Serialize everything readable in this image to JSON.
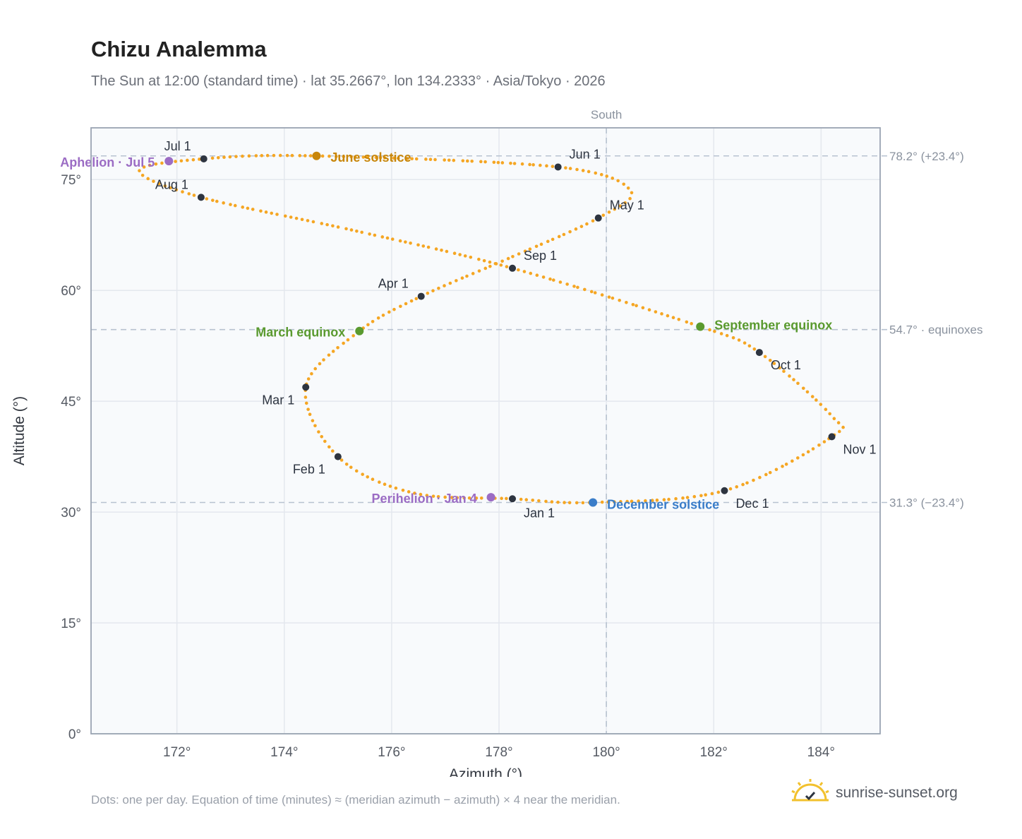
{
  "title": "Chizu Analemma",
  "subtitle": "The Sun at 12:00 (standard time) · lat 35.2667°, lon 134.2333° · Asia/Tokyo · 2026",
  "footnote": "Dots: one per day. Equation of time (minutes) ≈ (meridian azimuth − azimuth) × 4 near the meridian.",
  "brand": {
    "text": "sunrise-sunset.org",
    "icon": "sun-logo-icon"
  },
  "colors": {
    "curve": "#f5a623",
    "month_marker": "#2d3440",
    "june_solstice": "#c8860a",
    "equinox": "#5a9a2f",
    "december_solstice": "#3a7dc9",
    "apsis": "#9b6cc4",
    "plot_bg": "#f8fafc",
    "grid": "#e4e8ee",
    "axis": "#9aa4b2"
  },
  "chart_data": {
    "type": "scatter",
    "title": "Chizu Analemma",
    "xlabel": "Azimuth (°)",
    "ylabel": "Altitude (°)",
    "xlim": [
      170.4,
      185.1
    ],
    "ylim": [
      0,
      82
    ],
    "x_ticks": [
      172,
      174,
      176,
      178,
      180,
      182,
      184
    ],
    "x_tick_labels": [
      "172°",
      "174°",
      "176°",
      "178°",
      "180°",
      "182°",
      "184°"
    ],
    "y_ticks": [
      0,
      15,
      30,
      45,
      60,
      75
    ],
    "y_tick_labels": [
      "0°",
      "15°",
      "30°",
      "45°",
      "60°",
      "75°"
    ],
    "grid": true,
    "meridian": {
      "x": 180,
      "label": "South"
    },
    "reference_lines": [
      {
        "y": 78.2,
        "label": "78.2° (+23.4°)"
      },
      {
        "y": 54.7,
        "label": "54.7° · equinoxes"
      },
      {
        "y": 31.3,
        "label": "31.3° (−23.4°)"
      }
    ],
    "daily_path_note": "one dot per day",
    "control_points": [
      {
        "x": 178.25,
        "y": 31.8
      },
      {
        "x": 176.4,
        "y": 32.6
      },
      {
        "x": 175.0,
        "y": 37.5
      },
      {
        "x": 174.4,
        "y": 46.9
      },
      {
        "x": 175.4,
        "y": 54.5
      },
      {
        "x": 176.55,
        "y": 59.2
      },
      {
        "x": 178.2,
        "y": 64.4
      },
      {
        "x": 179.85,
        "y": 69.8
      },
      {
        "x": 180.45,
        "y": 73.5
      },
      {
        "x": 179.1,
        "y": 76.7
      },
      {
        "x": 174.6,
        "y": 78.2
      },
      {
        "x": 172.5,
        "y": 77.8
      },
      {
        "x": 171.3,
        "y": 76.2
      },
      {
        "x": 172.45,
        "y": 72.6
      },
      {
        "x": 175.3,
        "y": 68.1
      },
      {
        "x": 178.25,
        "y": 63.0
      },
      {
        "x": 181.75,
        "y": 55.1
      },
      {
        "x": 182.85,
        "y": 51.6
      },
      {
        "x": 184.2,
        "y": 43.0
      },
      {
        "x": 184.2,
        "y": 40.2
      },
      {
        "x": 182.2,
        "y": 32.9
      },
      {
        "x": 179.75,
        "y": 31.3
      },
      {
        "x": 178.25,
        "y": 31.8
      }
    ],
    "months": [
      {
        "label": "Jan 1",
        "x": 178.25,
        "y": 31.8
      },
      {
        "label": "Feb 1",
        "x": 175.0,
        "y": 37.5
      },
      {
        "label": "Mar 1",
        "x": 174.4,
        "y": 46.9
      },
      {
        "label": "Apr 1",
        "x": 176.55,
        "y": 59.2
      },
      {
        "label": "May 1",
        "x": 179.85,
        "y": 69.8
      },
      {
        "label": "Jun 1",
        "x": 179.1,
        "y": 76.7
      },
      {
        "label": "Jul 1",
        "x": 172.5,
        "y": 77.8
      },
      {
        "label": "Aug 1",
        "x": 172.45,
        "y": 72.6
      },
      {
        "label": "Sep 1",
        "x": 178.25,
        "y": 63.0
      },
      {
        "label": "Oct 1",
        "x": 182.85,
        "y": 51.6
      },
      {
        "label": "Nov 1",
        "x": 184.2,
        "y": 40.2
      },
      {
        "label": "Dec 1",
        "x": 182.2,
        "y": 32.9
      }
    ],
    "events": [
      {
        "label": "June solstice",
        "x": 174.6,
        "y": 78.2,
        "color_key": "june_solstice"
      },
      {
        "label": "March equinox",
        "x": 175.4,
        "y": 54.5,
        "color_key": "equinox"
      },
      {
        "label": "September equinox",
        "x": 181.75,
        "y": 55.1,
        "color_key": "equinox"
      },
      {
        "label": "December solstice",
        "x": 179.75,
        "y": 31.3,
        "color_key": "december_solstice"
      },
      {
        "label": "Aphelion · Jul 5",
        "x": 171.85,
        "y": 77.5,
        "color_key": "apsis"
      },
      {
        "label": "Perihelion · Jan 4",
        "x": 177.85,
        "y": 32.0,
        "color_key": "apsis"
      }
    ]
  }
}
